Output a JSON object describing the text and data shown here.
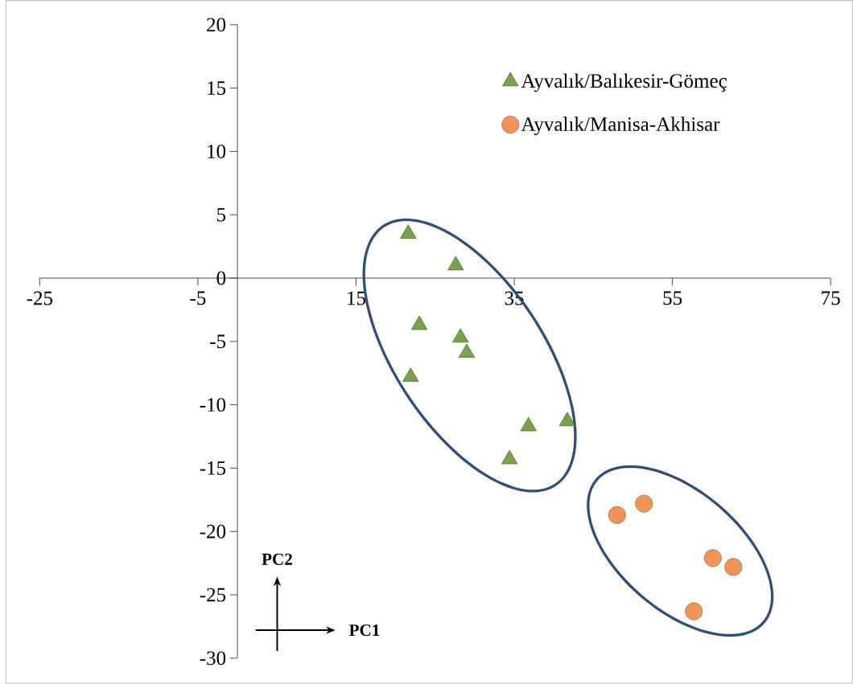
{
  "chart_data": {
    "type": "scatter",
    "xlim": [
      -25,
      75
    ],
    "ylim": [
      -30,
      20
    ],
    "xticks": [
      -25,
      -5,
      15,
      35,
      55,
      75
    ],
    "yticks": [
      -30,
      -25,
      -20,
      -15,
      -10,
      -5,
      0,
      5,
      10,
      15,
      20
    ],
    "grid": false,
    "legend": "top right",
    "annotations": [
      "PC2",
      "PC1"
    ],
    "series": [
      {
        "name": "Ayvalık/Balıkesir-Gömeç",
        "color": "#77a34a",
        "marker": "triangle",
        "x": [
          21.6,
          27.6,
          23.0,
          28.2,
          29.0,
          21.9,
          36.8,
          41.7,
          34.4
        ],
        "values": [
          3.5,
          1.0,
          -3.7,
          -4.7,
          -5.9,
          -7.8,
          -11.7,
          -11.3,
          -14.3
        ]
      },
      {
        "name": "Ayvalık/Manisa-Akhisar",
        "color": "#f0955a",
        "marker": "circle",
        "x": [
          48.0,
          51.4,
          60.1,
          62.7,
          57.7
        ],
        "values": [
          -18.7,
          -17.8,
          -22.1,
          -22.8,
          -26.3
        ]
      }
    ]
  }
}
